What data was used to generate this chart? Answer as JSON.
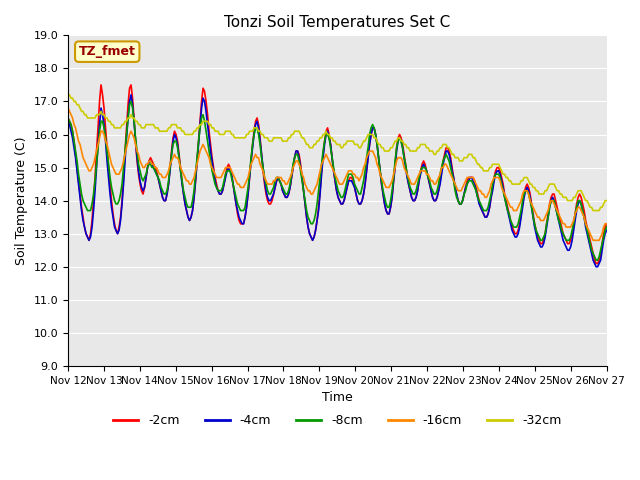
{
  "title": "Tonzi Soil Temperatures Set C",
  "xlabel": "Time",
  "ylabel": "Soil Temperature (C)",
  "ylim": [
    9.0,
    19.0
  ],
  "yticks": [
    9.0,
    10.0,
    11.0,
    12.0,
    13.0,
    14.0,
    15.0,
    16.0,
    17.0,
    18.0,
    19.0
  ],
  "background_color": "#e8e8e8",
  "annotation_text": "TZ_fmet",
  "annotation_bg": "#ffffcc",
  "annotation_border": "#cc9900",
  "annotation_text_color": "#990000",
  "series_colors": [
    "#ff0000",
    "#0000cc",
    "#009900",
    "#ff8800",
    "#cccc00"
  ],
  "series_labels": [
    "-2cm",
    "-4cm",
    "-8cm",
    "-16cm",
    "-32cm"
  ],
  "x_tick_labels": [
    "Nov 12",
    "Nov 13",
    "Nov 14",
    "Nov 15",
    "Nov 16",
    "Nov 17",
    "Nov 18",
    "Nov 19",
    "Nov 20",
    "Nov 21",
    "Nov 22",
    "Nov 23",
    "Nov 24",
    "Nov 25",
    "Nov 26",
    "Nov 27"
  ],
  "n_points": 360,
  "t2cm": [
    16.5,
    16.4,
    16.3,
    16.1,
    15.8,
    15.4,
    15.0,
    14.6,
    14.2,
    13.8,
    13.5,
    13.2,
    13.0,
    12.9,
    12.8,
    13.0,
    13.4,
    14.0,
    14.7,
    15.5,
    16.2,
    17.0,
    17.5,
    17.2,
    16.8,
    16.2,
    15.6,
    15.0,
    14.5,
    14.0,
    13.6,
    13.3,
    13.1,
    13.0,
    13.2,
    13.5,
    14.0,
    14.7,
    15.5,
    16.2,
    16.9,
    17.4,
    17.5,
    17.1,
    16.5,
    15.8,
    15.2,
    14.8,
    14.5,
    14.3,
    14.2,
    14.4,
    14.7,
    15.0,
    15.2,
    15.3,
    15.2,
    15.1,
    15.0,
    14.9,
    14.7,
    14.5,
    14.3,
    14.1,
    14.0,
    14.0,
    14.2,
    14.5,
    15.0,
    15.5,
    15.9,
    16.1,
    16.0,
    15.8,
    15.4,
    15.0,
    14.6,
    14.2,
    13.9,
    13.7,
    13.5,
    13.4,
    13.5,
    13.7,
    14.1,
    14.6,
    15.2,
    15.8,
    16.4,
    17.0,
    17.4,
    17.3,
    17.0,
    16.6,
    16.1,
    15.7,
    15.3,
    15.0,
    14.7,
    14.5,
    14.3,
    14.2,
    14.2,
    14.3,
    14.5,
    14.8,
    15.0,
    15.1,
    15.0,
    14.8,
    14.5,
    14.2,
    13.9,
    13.6,
    13.4,
    13.3,
    13.3,
    13.3,
    13.5,
    13.8,
    14.2,
    14.7,
    15.2,
    15.7,
    16.1,
    16.4,
    16.5,
    16.3,
    15.9,
    15.4,
    14.9,
    14.5,
    14.2,
    14.0,
    13.9,
    13.9,
    14.0,
    14.2,
    14.4,
    14.6,
    14.7,
    14.6,
    14.5,
    14.3,
    14.2,
    14.1,
    14.1,
    14.2,
    14.4,
    14.7,
    15.0,
    15.3,
    15.5,
    15.5,
    15.4,
    15.1,
    14.7,
    14.3,
    13.9,
    13.5,
    13.2,
    13.0,
    12.9,
    12.8,
    12.9,
    13.1,
    13.4,
    13.8,
    14.3,
    14.9,
    15.4,
    15.8,
    16.1,
    16.2,
    16.0,
    15.7,
    15.3,
    14.9,
    14.6,
    14.3,
    14.1,
    14.0,
    13.9,
    13.9,
    14.0,
    14.2,
    14.4,
    14.6,
    14.7,
    14.7,
    14.6,
    14.4,
    14.2,
    14.0,
    13.9,
    13.9,
    14.0,
    14.2,
    14.5,
    14.9,
    15.3,
    15.7,
    16.0,
    16.2,
    16.2,
    16.0,
    15.7,
    15.3,
    14.9,
    14.5,
    14.2,
    13.9,
    13.7,
    13.6,
    13.6,
    13.8,
    14.1,
    14.6,
    15.1,
    15.6,
    15.9,
    16.0,
    15.9,
    15.7,
    15.4,
    15.1,
    14.8,
    14.5,
    14.3,
    14.1,
    14.0,
    14.0,
    14.1,
    14.3,
    14.6,
    14.9,
    15.1,
    15.2,
    15.1,
    14.9,
    14.7,
    14.5,
    14.3,
    14.1,
    14.0,
    14.0,
    14.1,
    14.3,
    14.6,
    14.9,
    15.2,
    15.4,
    15.6,
    15.6,
    15.5,
    15.3,
    15.0,
    14.7,
    14.4,
    14.2,
    14.0,
    13.9,
    13.9,
    14.0,
    14.2,
    14.4,
    14.6,
    14.7,
    14.7,
    14.7,
    14.7,
    14.6,
    14.4,
    14.2,
    14.0,
    13.8,
    13.7,
    13.6,
    13.5,
    13.5,
    13.6,
    13.8,
    14.1,
    14.4,
    14.7,
    14.9,
    15.0,
    15.0,
    14.9,
    14.7,
    14.5,
    14.2,
    14.0,
    13.8,
    13.6,
    13.4,
    13.2,
    13.1,
    13.0,
    13.0,
    13.1,
    13.3,
    13.6,
    13.9,
    14.2,
    14.4,
    14.5,
    14.4,
    14.2,
    13.9,
    13.6,
    13.3,
    13.1,
    12.9,
    12.8,
    12.7,
    12.7,
    12.8,
    13.0,
    13.3,
    13.6,
    13.9,
    14.1,
    14.2,
    14.2,
    14.0,
    13.8,
    13.6,
    13.4,
    13.2,
    13.0,
    12.9,
    12.8,
    12.7,
    12.7,
    12.8,
    13.0,
    13.3,
    13.6,
    13.9,
    14.1,
    14.2,
    14.1,
    13.9,
    13.7,
    13.4,
    13.2,
    13.0,
    12.8,
    12.6,
    12.4,
    12.2,
    12.1,
    12.1,
    12.2,
    12.4,
    12.7,
    13.0,
    13.2,
    13.3
  ],
  "t4cm": [
    16.4,
    16.3,
    16.1,
    15.9,
    15.6,
    15.3,
    14.9,
    14.5,
    14.1,
    13.7,
    13.4,
    13.2,
    13.0,
    12.9,
    12.8,
    12.9,
    13.2,
    13.7,
    14.3,
    15.0,
    15.7,
    16.3,
    16.8,
    16.6,
    16.3,
    15.8,
    15.2,
    14.7,
    14.2,
    13.8,
    13.5,
    13.2,
    13.1,
    13.0,
    13.1,
    13.4,
    13.9,
    14.5,
    15.2,
    15.9,
    16.5,
    17.0,
    17.2,
    16.9,
    16.4,
    15.8,
    15.3,
    14.9,
    14.6,
    14.4,
    14.3,
    14.4,
    14.7,
    15.0,
    15.2,
    15.2,
    15.1,
    15.0,
    14.9,
    14.8,
    14.7,
    14.5,
    14.3,
    14.1,
    14.0,
    14.0,
    14.2,
    14.5,
    14.9,
    15.4,
    15.8,
    16.0,
    15.9,
    15.7,
    15.3,
    14.9,
    14.5,
    14.2,
    13.9,
    13.7,
    13.5,
    13.4,
    13.5,
    13.7,
    14.1,
    14.6,
    15.2,
    15.7,
    16.3,
    16.8,
    17.1,
    17.0,
    16.7,
    16.3,
    15.9,
    15.5,
    15.2,
    14.9,
    14.6,
    14.4,
    14.3,
    14.2,
    14.2,
    14.3,
    14.5,
    14.7,
    14.9,
    15.0,
    14.9,
    14.8,
    14.5,
    14.2,
    13.9,
    13.7,
    13.5,
    13.4,
    13.3,
    13.3,
    13.5,
    13.8,
    14.2,
    14.7,
    15.2,
    15.6,
    16.0,
    16.3,
    16.4,
    16.2,
    15.8,
    15.4,
    15.0,
    14.6,
    14.3,
    14.1,
    14.0,
    14.0,
    14.1,
    14.2,
    14.4,
    14.6,
    14.7,
    14.6,
    14.5,
    14.3,
    14.2,
    14.1,
    14.1,
    14.2,
    14.4,
    14.7,
    15.0,
    15.3,
    15.5,
    15.5,
    15.3,
    15.0,
    14.7,
    14.3,
    13.9,
    13.5,
    13.2,
    13.0,
    12.9,
    12.8,
    12.9,
    13.1,
    13.4,
    13.7,
    14.2,
    14.8,
    15.3,
    15.7,
    16.0,
    16.1,
    15.9,
    15.7,
    15.3,
    14.9,
    14.6,
    14.3,
    14.1,
    14.0,
    13.9,
    13.9,
    14.0,
    14.2,
    14.4,
    14.6,
    14.6,
    14.6,
    14.5,
    14.4,
    14.2,
    14.0,
    13.9,
    13.9,
    14.0,
    14.2,
    14.5,
    14.9,
    15.3,
    15.7,
    16.0,
    16.2,
    16.2,
    16.0,
    15.7,
    15.3,
    14.9,
    14.5,
    14.2,
    13.9,
    13.7,
    13.6,
    13.6,
    13.8,
    14.1,
    14.6,
    15.0,
    15.5,
    15.8,
    15.9,
    15.8,
    15.6,
    15.3,
    15.0,
    14.7,
    14.5,
    14.3,
    14.1,
    14.0,
    14.0,
    14.1,
    14.3,
    14.6,
    14.8,
    15.0,
    15.1,
    15.0,
    14.9,
    14.7,
    14.5,
    14.3,
    14.1,
    14.0,
    14.0,
    14.1,
    14.3,
    14.5,
    14.8,
    15.1,
    15.3,
    15.5,
    15.5,
    15.4,
    15.2,
    14.9,
    14.7,
    14.4,
    14.2,
    14.0,
    13.9,
    13.9,
    14.0,
    14.2,
    14.4,
    14.5,
    14.6,
    14.7,
    14.7,
    14.6,
    14.5,
    14.3,
    14.1,
    13.9,
    13.8,
    13.7,
    13.6,
    13.5,
    13.5,
    13.6,
    13.8,
    14.1,
    14.3,
    14.6,
    14.8,
    14.9,
    14.9,
    14.8,
    14.6,
    14.4,
    14.1,
    13.9,
    13.7,
    13.5,
    13.3,
    13.1,
    13.0,
    12.9,
    12.9,
    13.0,
    13.2,
    13.5,
    13.8,
    14.1,
    14.3,
    14.4,
    14.3,
    14.1,
    13.8,
    13.5,
    13.2,
    13.0,
    12.8,
    12.7,
    12.6,
    12.6,
    12.7,
    12.9,
    13.2,
    13.5,
    13.8,
    14.0,
    14.1,
    14.0,
    13.8,
    13.6,
    13.4,
    13.2,
    13.0,
    12.8,
    12.7,
    12.6,
    12.5,
    12.5,
    12.6,
    12.8,
    13.1,
    13.4,
    13.7,
    13.9,
    14.0,
    13.9,
    13.7,
    13.5,
    13.2,
    13.0,
    12.8,
    12.6,
    12.4,
    12.2,
    12.1,
    12.0,
    12.0,
    12.1,
    12.2,
    12.5,
    12.8,
    13.0,
    13.1
  ],
  "t8cm": [
    16.5,
    16.4,
    16.3,
    16.1,
    15.8,
    15.5,
    15.2,
    14.8,
    14.5,
    14.2,
    14.0,
    13.9,
    13.8,
    13.7,
    13.7,
    13.7,
    13.9,
    14.2,
    14.6,
    15.1,
    15.6,
    16.1,
    16.4,
    16.4,
    16.2,
    15.9,
    15.5,
    15.1,
    14.7,
    14.4,
    14.2,
    14.0,
    13.9,
    13.9,
    14.0,
    14.2,
    14.5,
    15.0,
    15.5,
    16.0,
    16.5,
    16.9,
    17.0,
    16.8,
    16.4,
    15.9,
    15.5,
    15.1,
    14.9,
    14.7,
    14.6,
    14.7,
    14.8,
    15.0,
    15.1,
    15.1,
    15.0,
    15.0,
    14.9,
    14.8,
    14.7,
    14.6,
    14.4,
    14.3,
    14.2,
    14.2,
    14.3,
    14.6,
    15.0,
    15.4,
    15.7,
    15.8,
    15.8,
    15.6,
    15.3,
    14.9,
    14.6,
    14.3,
    14.1,
    13.9,
    13.8,
    13.8,
    13.8,
    14.0,
    14.3,
    14.8,
    15.3,
    15.8,
    16.2,
    16.5,
    16.6,
    16.4,
    16.1,
    15.8,
    15.5,
    15.2,
    14.9,
    14.7,
    14.5,
    14.4,
    14.3,
    14.3,
    14.3,
    14.4,
    14.6,
    14.8,
    14.9,
    14.9,
    14.9,
    14.7,
    14.5,
    14.3,
    14.1,
    13.9,
    13.8,
    13.7,
    13.7,
    13.7,
    13.8,
    14.1,
    14.4,
    14.8,
    15.3,
    15.7,
    16.0,
    16.2,
    16.2,
    16.0,
    15.7,
    15.3,
    15.0,
    14.7,
    14.5,
    14.3,
    14.2,
    14.2,
    14.3,
    14.4,
    14.6,
    14.7,
    14.7,
    14.6,
    14.5,
    14.4,
    14.3,
    14.2,
    14.2,
    14.3,
    14.5,
    14.8,
    15.1,
    15.3,
    15.4,
    15.4,
    15.2,
    14.9,
    14.6,
    14.3,
    14.0,
    13.7,
    13.5,
    13.4,
    13.3,
    13.3,
    13.4,
    13.6,
    13.9,
    14.3,
    14.7,
    15.1,
    15.5,
    15.8,
    16.0,
    16.0,
    15.9,
    15.6,
    15.3,
    15.0,
    14.7,
    14.5,
    14.3,
    14.2,
    14.1,
    14.1,
    14.2,
    14.4,
    14.6,
    14.8,
    14.8,
    14.8,
    14.7,
    14.5,
    14.4,
    14.3,
    14.2,
    14.2,
    14.4,
    14.6,
    14.9,
    15.3,
    15.6,
    16.0,
    16.2,
    16.3,
    16.2,
    16.0,
    15.7,
    15.3,
    14.9,
    14.6,
    14.3,
    14.1,
    13.9,
    13.8,
    13.8,
    14.0,
    14.3,
    14.7,
    15.2,
    15.6,
    15.8,
    15.9,
    15.8,
    15.6,
    15.3,
    15.1,
    14.8,
    14.6,
    14.4,
    14.3,
    14.2,
    14.2,
    14.3,
    14.5,
    14.7,
    14.9,
    15.0,
    15.0,
    15.0,
    14.9,
    14.7,
    14.6,
    14.4,
    14.3,
    14.2,
    14.2,
    14.3,
    14.5,
    14.8,
    15.0,
    15.2,
    15.3,
    15.4,
    15.3,
    15.2,
    15.0,
    14.8,
    14.6,
    14.3,
    14.1,
    14.0,
    13.9,
    13.9,
    14.0,
    14.2,
    14.3,
    14.5,
    14.6,
    14.6,
    14.6,
    14.5,
    14.4,
    14.3,
    14.1,
    14.0,
    13.9,
    13.8,
    13.7,
    13.7,
    13.7,
    13.8,
    14.0,
    14.2,
    14.5,
    14.7,
    14.8,
    14.8,
    14.8,
    14.7,
    14.5,
    14.3,
    14.1,
    13.9,
    13.7,
    13.6,
    13.4,
    13.3,
    13.2,
    13.2,
    13.2,
    13.3,
    13.5,
    13.7,
    14.0,
    14.2,
    14.3,
    14.3,
    14.2,
    14.0,
    13.8,
    13.5,
    13.3,
    13.1,
    13.0,
    12.9,
    12.8,
    12.8,
    12.9,
    13.0,
    13.3,
    13.5,
    13.8,
    14.0,
    14.0,
    14.0,
    13.8,
    13.6,
    13.4,
    13.3,
    13.1,
    13.0,
    12.9,
    12.8,
    12.8,
    12.8,
    12.9,
    13.1,
    13.3,
    13.6,
    13.8,
    14.0,
    14.0,
    13.9,
    13.7,
    13.5,
    13.3,
    13.1,
    12.9,
    12.7,
    12.5,
    12.4,
    12.3,
    12.2,
    12.2,
    12.3,
    12.5,
    12.7,
    12.9,
    13.1,
    13.2
  ],
  "t16cm": [
    16.8,
    16.7,
    16.6,
    16.5,
    16.3,
    16.2,
    16.0,
    15.8,
    15.7,
    15.5,
    15.3,
    15.2,
    15.1,
    15.0,
    14.9,
    14.9,
    15.0,
    15.1,
    15.3,
    15.5,
    15.7,
    15.9,
    16.1,
    16.1,
    16.0,
    15.8,
    15.7,
    15.5,
    15.3,
    15.1,
    15.0,
    14.9,
    14.8,
    14.8,
    14.8,
    14.9,
    15.0,
    15.2,
    15.4,
    15.6,
    15.8,
    16.0,
    16.1,
    16.0,
    15.9,
    15.7,
    15.5,
    15.4,
    15.2,
    15.1,
    15.0,
    15.0,
    15.1,
    15.1,
    15.2,
    15.2,
    15.1,
    15.1,
    15.0,
    15.0,
    14.9,
    14.8,
    14.8,
    14.7,
    14.7,
    14.7,
    14.8,
    14.9,
    15.1,
    15.2,
    15.3,
    15.4,
    15.3,
    15.3,
    15.2,
    15.0,
    14.9,
    14.8,
    14.7,
    14.6,
    14.6,
    14.5,
    14.5,
    14.6,
    14.7,
    14.9,
    15.1,
    15.3,
    15.5,
    15.6,
    15.7,
    15.6,
    15.5,
    15.4,
    15.3,
    15.1,
    15.0,
    14.9,
    14.8,
    14.7,
    14.7,
    14.7,
    14.7,
    14.8,
    14.9,
    15.0,
    15.0,
    15.0,
    15.0,
    14.9,
    14.8,
    14.7,
    14.6,
    14.5,
    14.5,
    14.4,
    14.4,
    14.4,
    14.5,
    14.6,
    14.7,
    14.9,
    15.1,
    15.2,
    15.3,
    15.4,
    15.3,
    15.3,
    15.1,
    15.0,
    14.9,
    14.7,
    14.6,
    14.5,
    14.5,
    14.5,
    14.5,
    14.6,
    14.6,
    14.7,
    14.7,
    14.7,
    14.7,
    14.6,
    14.6,
    14.5,
    14.5,
    14.6,
    14.7,
    14.8,
    15.0,
    15.1,
    15.2,
    15.2,
    15.1,
    15.0,
    14.8,
    14.7,
    14.5,
    14.4,
    14.3,
    14.3,
    14.2,
    14.2,
    14.3,
    14.4,
    14.5,
    14.7,
    14.9,
    15.1,
    15.2,
    15.3,
    15.4,
    15.3,
    15.2,
    15.1,
    15.0,
    14.9,
    14.8,
    14.7,
    14.6,
    14.5,
    14.5,
    14.5,
    14.6,
    14.7,
    14.8,
    14.9,
    14.9,
    14.9,
    14.8,
    14.8,
    14.7,
    14.7,
    14.6,
    14.7,
    14.8,
    15.0,
    15.1,
    15.3,
    15.4,
    15.5,
    15.5,
    15.5,
    15.4,
    15.3,
    15.1,
    15.0,
    14.8,
    14.7,
    14.6,
    14.5,
    14.4,
    14.4,
    14.4,
    14.5,
    14.6,
    14.8,
    15.0,
    15.2,
    15.3,
    15.3,
    15.3,
    15.2,
    15.0,
    14.9,
    14.8,
    14.7,
    14.6,
    14.5,
    14.5,
    14.5,
    14.6,
    14.7,
    14.8,
    14.9,
    14.9,
    14.9,
    14.9,
    14.8,
    14.8,
    14.7,
    14.6,
    14.6,
    14.5,
    14.5,
    14.6,
    14.7,
    14.8,
    15.0,
    15.0,
    15.1,
    15.1,
    15.0,
    14.9,
    14.8,
    14.7,
    14.6,
    14.5,
    14.4,
    14.3,
    14.3,
    14.3,
    14.4,
    14.5,
    14.6,
    14.7,
    14.7,
    14.7,
    14.7,
    14.7,
    14.6,
    14.5,
    14.4,
    14.3,
    14.3,
    14.2,
    14.2,
    14.1,
    14.1,
    14.2,
    14.3,
    14.5,
    14.6,
    14.7,
    14.7,
    14.7,
    14.7,
    14.6,
    14.4,
    14.3,
    14.2,
    14.1,
    14.0,
    13.9,
    13.8,
    13.8,
    13.7,
    13.7,
    13.7,
    13.8,
    13.9,
    14.0,
    14.2,
    14.3,
    14.3,
    14.3,
    14.2,
    14.0,
    13.9,
    13.8,
    13.7,
    13.6,
    13.5,
    13.5,
    13.4,
    13.4,
    13.4,
    13.5,
    13.6,
    13.7,
    13.9,
    14.0,
    14.0,
    13.9,
    13.8,
    13.7,
    13.6,
    13.5,
    13.4,
    13.3,
    13.3,
    13.2,
    13.2,
    13.2,
    13.2,
    13.3,
    13.4,
    13.6,
    13.7,
    13.8,
    13.8,
    13.7,
    13.6,
    13.5,
    13.3,
    13.2,
    13.1,
    13.0,
    12.9,
    12.8,
    12.8,
    12.8,
    12.8,
    12.8,
    12.9,
    13.0,
    13.2,
    13.3,
    13.3
  ],
  "t32cm": [
    17.2,
    17.2,
    17.1,
    17.1,
    17.0,
    17.0,
    16.9,
    16.9,
    16.8,
    16.7,
    16.7,
    16.6,
    16.6,
    16.5,
    16.5,
    16.5,
    16.5,
    16.5,
    16.5,
    16.6,
    16.6,
    16.6,
    16.7,
    16.6,
    16.6,
    16.5,
    16.5,
    16.4,
    16.4,
    16.3,
    16.3,
    16.2,
    16.2,
    16.2,
    16.2,
    16.2,
    16.3,
    16.3,
    16.4,
    16.4,
    16.5,
    16.5,
    16.6,
    16.5,
    16.5,
    16.4,
    16.4,
    16.3,
    16.3,
    16.2,
    16.2,
    16.2,
    16.3,
    16.3,
    16.3,
    16.3,
    16.3,
    16.3,
    16.2,
    16.2,
    16.2,
    16.1,
    16.1,
    16.1,
    16.1,
    16.1,
    16.1,
    16.2,
    16.2,
    16.3,
    16.3,
    16.3,
    16.3,
    16.2,
    16.2,
    16.2,
    16.1,
    16.1,
    16.0,
    16.0,
    16.0,
    16.0,
    16.0,
    16.0,
    16.1,
    16.1,
    16.2,
    16.2,
    16.3,
    16.3,
    16.4,
    16.4,
    16.4,
    16.4,
    16.3,
    16.3,
    16.2,
    16.2,
    16.1,
    16.1,
    16.1,
    16.0,
    16.0,
    16.0,
    16.0,
    16.1,
    16.1,
    16.1,
    16.1,
    16.0,
    16.0,
    15.9,
    15.9,
    15.9,
    15.9,
    15.9,
    15.9,
    15.9,
    15.9,
    16.0,
    16.0,
    16.1,
    16.1,
    16.1,
    16.2,
    16.2,
    16.2,
    16.1,
    16.1,
    16.0,
    16.0,
    15.9,
    15.9,
    15.9,
    15.8,
    15.8,
    15.8,
    15.9,
    15.9,
    15.9,
    15.9,
    15.9,
    15.9,
    15.8,
    15.8,
    15.8,
    15.8,
    15.9,
    15.9,
    16.0,
    16.0,
    16.1,
    16.1,
    16.1,
    16.1,
    16.0,
    15.9,
    15.9,
    15.8,
    15.7,
    15.7,
    15.6,
    15.6,
    15.6,
    15.7,
    15.7,
    15.8,
    15.8,
    15.9,
    15.9,
    16.0,
    16.0,
    16.1,
    16.0,
    16.0,
    15.9,
    15.9,
    15.8,
    15.8,
    15.7,
    15.7,
    15.7,
    15.6,
    15.6,
    15.7,
    15.7,
    15.8,
    15.8,
    15.8,
    15.8,
    15.8,
    15.7,
    15.7,
    15.7,
    15.6,
    15.6,
    15.7,
    15.8,
    15.8,
    15.9,
    16.0,
    16.0,
    16.0,
    16.0,
    15.9,
    15.9,
    15.8,
    15.7,
    15.7,
    15.6,
    15.6,
    15.5,
    15.5,
    15.5,
    15.5,
    15.6,
    15.6,
    15.7,
    15.8,
    15.8,
    15.9,
    15.9,
    15.8,
    15.8,
    15.7,
    15.7,
    15.6,
    15.6,
    15.5,
    15.5,
    15.5,
    15.5,
    15.5,
    15.6,
    15.6,
    15.7,
    15.7,
    15.7,
    15.7,
    15.6,
    15.6,
    15.5,
    15.5,
    15.5,
    15.4,
    15.4,
    15.5,
    15.5,
    15.6,
    15.6,
    15.7,
    15.7,
    15.7,
    15.6,
    15.6,
    15.5,
    15.4,
    15.4,
    15.3,
    15.3,
    15.3,
    15.2,
    15.2,
    15.2,
    15.3,
    15.3,
    15.3,
    15.4,
    15.4,
    15.4,
    15.3,
    15.3,
    15.2,
    15.1,
    15.1,
    15.0,
    15.0,
    14.9,
    14.9,
    14.9,
    14.9,
    15.0,
    15.0,
    15.1,
    15.1,
    15.1,
    15.1,
    15.1,
    15.0,
    14.9,
    14.8,
    14.8,
    14.7,
    14.7,
    14.6,
    14.6,
    14.5,
    14.5,
    14.5,
    14.5,
    14.5,
    14.5,
    14.6,
    14.6,
    14.7,
    14.7,
    14.7,
    14.6,
    14.5,
    14.5,
    14.4,
    14.4,
    14.3,
    14.3,
    14.2,
    14.2,
    14.2,
    14.2,
    14.3,
    14.3,
    14.4,
    14.5,
    14.5,
    14.5,
    14.5,
    14.4,
    14.3,
    14.3,
    14.2,
    14.2,
    14.1,
    14.1,
    14.1,
    14.0,
    14.0,
    14.0,
    14.0,
    14.1,
    14.1,
    14.2,
    14.3,
    14.3,
    14.3,
    14.2,
    14.1,
    14.0,
    14.0,
    13.9,
    13.8,
    13.8,
    13.7,
    13.7,
    13.7,
    13.7,
    13.7,
    13.8,
    13.8,
    13.9,
    14.0,
    14.0
  ]
}
